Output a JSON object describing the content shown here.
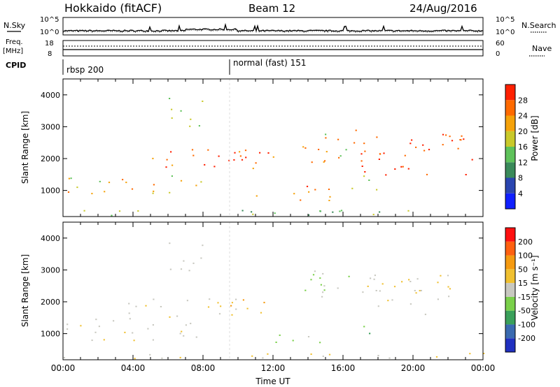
{
  "header": {
    "station": "Hokkaido (fitACF)",
    "beam": "Beam 12",
    "date": "24/Aug/2016"
  },
  "side_labels": {
    "nsky": "N.Sky",
    "freq_line1": "Freq.",
    "freq_line2": "[MHz]",
    "cpid": "CPID",
    "nsearch": "N.Search",
    "nave": "Nave"
  },
  "cpid_labels": [
    {
      "text": "rbsp 200",
      "start_hour": 0
    },
    {
      "text": "normal (fast) 151",
      "start_hour": 9.5
    }
  ],
  "chart_data": [
    {
      "type": "line",
      "title": "",
      "ylabel_left": "N.Sky",
      "ylabel_right": "N.Search",
      "left_ticks": [
        "10^5",
        "10^0"
      ],
      "right_ticks": [
        "10^5",
        "10^0"
      ],
      "xlim": [
        0,
        24
      ],
      "note": "noise level traces (solid = N.Sky, dotted = N.Search)"
    },
    {
      "type": "line",
      "ylabel_left": "Freq. [MHz]",
      "ylabel_right": "Nave",
      "left_ticks": [
        "18",
        "8"
      ],
      "right_ticks": [
        "60",
        "0"
      ],
      "xlim": [
        0,
        24
      ]
    },
    {
      "type": "heatmap",
      "ylabel": "Slant Range [km]",
      "yticks": [
        1000,
        2000,
        3000,
        4000
      ],
      "ylim": [
        180,
        4500
      ],
      "xlim": [
        0,
        24
      ],
      "colorbar": {
        "label": "Power [dB]",
        "ticks": [
          "4",
          "8",
          "12",
          "16",
          "20",
          "24",
          "28"
        ],
        "colors": [
          "#1020ff",
          "#2a45b0",
          "#3a8a5a",
          "#5ec25a",
          "#c9c92a",
          "#f5a20a",
          "#ff6a00",
          "#ff2000"
        ]
      }
    },
    {
      "type": "heatmap",
      "ylabel": "Slant Range [km]",
      "yticks": [
        1000,
        2000,
        3000,
        4000
      ],
      "ylim": [
        180,
        4500
      ],
      "xlim": [
        0,
        24
      ],
      "xlabel": "Time UT",
      "xticks": [
        "00:00",
        "04:00",
        "08:00",
        "12:00",
        "16:00",
        "20:00",
        "00:00"
      ],
      "colorbar": {
        "label": "Velocity [m s⁻¹]",
        "ticks": [
          "200",
          "100",
          "50",
          "15",
          "-15",
          "-50",
          "-100",
          "-200"
        ],
        "colors": [
          "#2030c0",
          "#3a6ab0",
          "#3aa05a",
          "#7ad04a",
          "#c8c8c0",
          "#f0c030",
          "#f59a10",
          "#ff6010",
          "#ff1010"
        ]
      }
    }
  ]
}
